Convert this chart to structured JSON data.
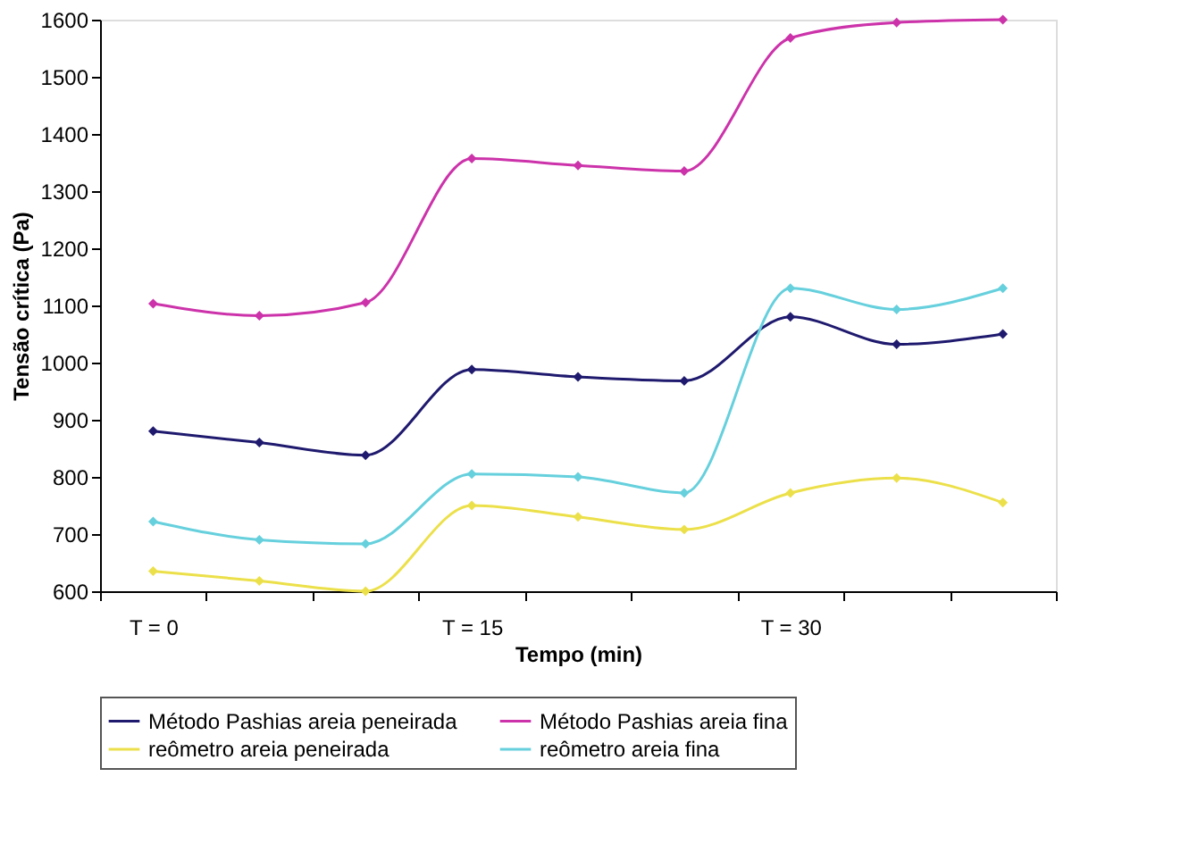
{
  "chart_data": {
    "type": "line",
    "xlabel": "Tempo (min)",
    "ylabel": "Tensão crítica (Pa)",
    "categories": [
      "T = 0",
      null,
      null,
      "T = 15",
      null,
      null,
      "T = 30",
      null,
      null
    ],
    "ylim": [
      600,
      1600
    ],
    "yticks": [
      600,
      700,
      800,
      900,
      1000,
      1100,
      1200,
      1300,
      1400,
      1500,
      1600
    ],
    "grid": false,
    "legend": "bottom",
    "marker": "diamond",
    "line_style": "solid",
    "series": [
      {
        "name": "Método Pashias areia peneirada",
        "color": "#1f1a6e",
        "values": [
          880,
          860,
          838,
          988,
          975,
          968,
          1080,
          1032,
          1050
        ]
      },
      {
        "name": "Método Pashias areia fina",
        "color": "#cc33aa",
        "values": [
          1103,
          1082,
          1105,
          1357,
          1345,
          1335,
          1568,
          1595,
          1600
        ]
      },
      {
        "name": "reômetro areia peneirada",
        "color": "#ece04a",
        "values": [
          635,
          618,
          600,
          750,
          730,
          708,
          772,
          798,
          755
        ]
      },
      {
        "name": "reômetro areia fina",
        "color": "#66d0dd",
        "values": [
          722,
          690,
          683,
          805,
          800,
          772,
          1130,
          1093,
          1130
        ]
      }
    ]
  }
}
